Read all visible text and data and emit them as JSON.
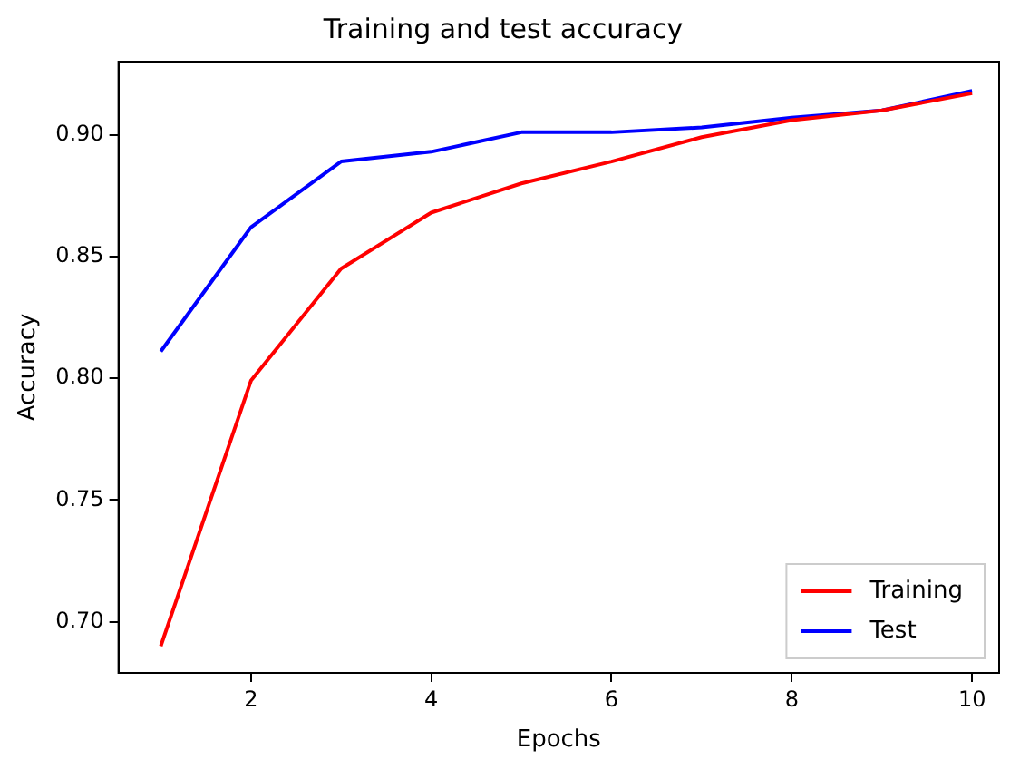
{
  "chart_data": {
    "type": "line",
    "title": "Training and test accuracy",
    "xlabel": "Epochs",
    "ylabel": "Accuracy",
    "x": [
      1,
      2,
      3,
      4,
      5,
      6,
      7,
      8,
      9,
      10
    ],
    "series": [
      {
        "name": "Training",
        "color": "#ff0000",
        "values": [
          0.69,
          0.799,
          0.845,
          0.868,
          0.88,
          0.889,
          0.899,
          0.906,
          0.91,
          0.917
        ]
      },
      {
        "name": "Test",
        "color": "#0000ff",
        "values": [
          0.811,
          0.862,
          0.889,
          0.893,
          0.901,
          0.901,
          0.903,
          0.907,
          0.91,
          0.918
        ]
      }
    ],
    "xlim": [
      0.53,
      10.3
    ],
    "xticks": [
      2,
      4,
      6,
      8,
      10
    ],
    "ylim": [
      0.679,
      0.93
    ],
    "yticks": [
      {
        "value": 0.7,
        "label": "0.70"
      },
      0.75,
      {
        "value": 0.8,
        "label": "0.80"
      },
      0.85,
      {
        "value": 0.9,
        "label": "0.90"
      }
    ],
    "grid": false,
    "legend": "bottom right",
    "marker": "none",
    "line_style": "solid"
  }
}
